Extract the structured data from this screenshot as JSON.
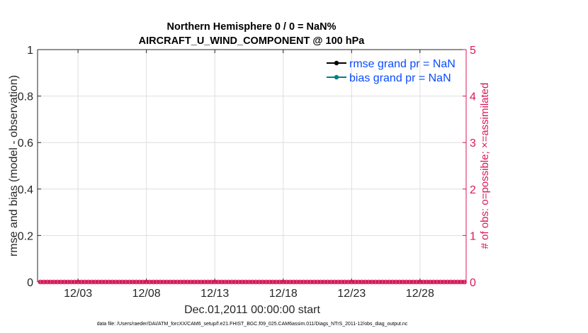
{
  "chart_data": {
    "type": "line",
    "title": [
      "Northern Hemisphere 0 / 0 = NaN%",
      "AIRCRAFT_U_WIND_COMPONENT @ 100 hPa"
    ],
    "xlabel": "Dec.01,2011 00:00:00 start",
    "ylabel": "rmse and bias (model - observation)",
    "ylabel_right": "# of obs: o=possible; ×=assimilated",
    "footer": "data file: /Users/raeder/DAI/ATM_forcXX/CAM6_setup/f.e21.FHIST_BGC.f09_025.CAM6assim.011/Diags_NTrS_2011-12/obs_diag_output.nc",
    "xlim": [
      "2011-11-30 01:00",
      "2011-12-31 09:00"
    ],
    "x_ticks": [
      "2011-12-03",
      "2011-12-08",
      "2011-12-13",
      "2011-12-18",
      "2011-12-23",
      "2011-12-28"
    ],
    "x_tick_labels": [
      "12/03",
      "12/08",
      "12/13",
      "12/18",
      "12/23",
      "12/28"
    ],
    "ylim": [
      0,
      1
    ],
    "y_ticks": [
      0,
      0.2,
      0.4,
      0.6,
      0.8,
      1
    ],
    "y_tick_labels": [
      "0",
      "0.2",
      "0.4",
      "0.6",
      "0.8",
      "1"
    ],
    "ylim_right": [
      0,
      5
    ],
    "y_ticks_right": [
      0,
      1,
      2,
      3,
      4,
      5
    ],
    "y_tick_labels_right": [
      "0",
      "1",
      "2",
      "3",
      "4",
      "5"
    ],
    "grid": true,
    "legend_position": "top-right",
    "legend": [
      "rmse grand pr = NaN",
      "bias grand pr = NaN"
    ],
    "colors": {
      "rmse": "#000000",
      "bias": "#008080",
      "obs": "#d9175a",
      "legend_text": "#0a4bff"
    },
    "series": [
      {
        "name": "rmse grand pr = NaN",
        "values": "NaN",
        "marker": "circle"
      },
      {
        "name": "bias grand pr = NaN",
        "values": "NaN",
        "marker": "circle"
      },
      {
        "axis": "right",
        "marker": "o",
        "kind": "possible",
        "value_at_every_time": 0
      },
      {
        "axis": "right",
        "marker": "x",
        "kind": "assimilated",
        "value_at_every_time": 0
      }
    ],
    "obs_time_range": {
      "first": "2011-11-30 06:00",
      "last": "2011-12-31 06:00",
      "interval_hours": 6
    }
  }
}
